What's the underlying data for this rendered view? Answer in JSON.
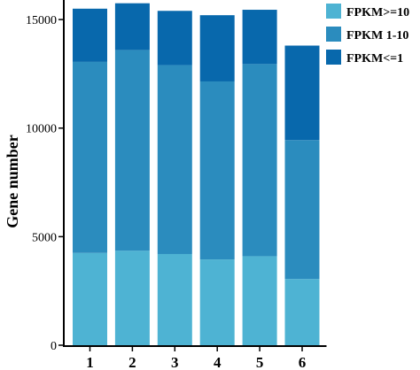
{
  "chart_data": {
    "type": "bar",
    "stacked": true,
    "categories": [
      "1",
      "2",
      "3",
      "4",
      "5",
      "6"
    ],
    "series": [
      {
        "name": "FPKM>=10",
        "color": "#4eb3d3",
        "values": [
          4250,
          4350,
          4200,
          3950,
          4100,
          3050
        ]
      },
      {
        "name": "FPKM 1-10",
        "color": "#2b8cbe",
        "values": [
          8800,
          9250,
          8700,
          8200,
          8850,
          6400
        ]
      },
      {
        "name": "FPKM<=1",
        "color": "#0868ac",
        "values": [
          2450,
          2150,
          2500,
          3050,
          2500,
          4350
        ]
      }
    ],
    "title": "",
    "xlabel": "",
    "ylabel": "Gene number",
    "ylim": [
      0,
      15900
    ],
    "yticks": [
      0,
      5000,
      10000,
      15000
    ],
    "grid": false,
    "legend_position": "top-right"
  }
}
